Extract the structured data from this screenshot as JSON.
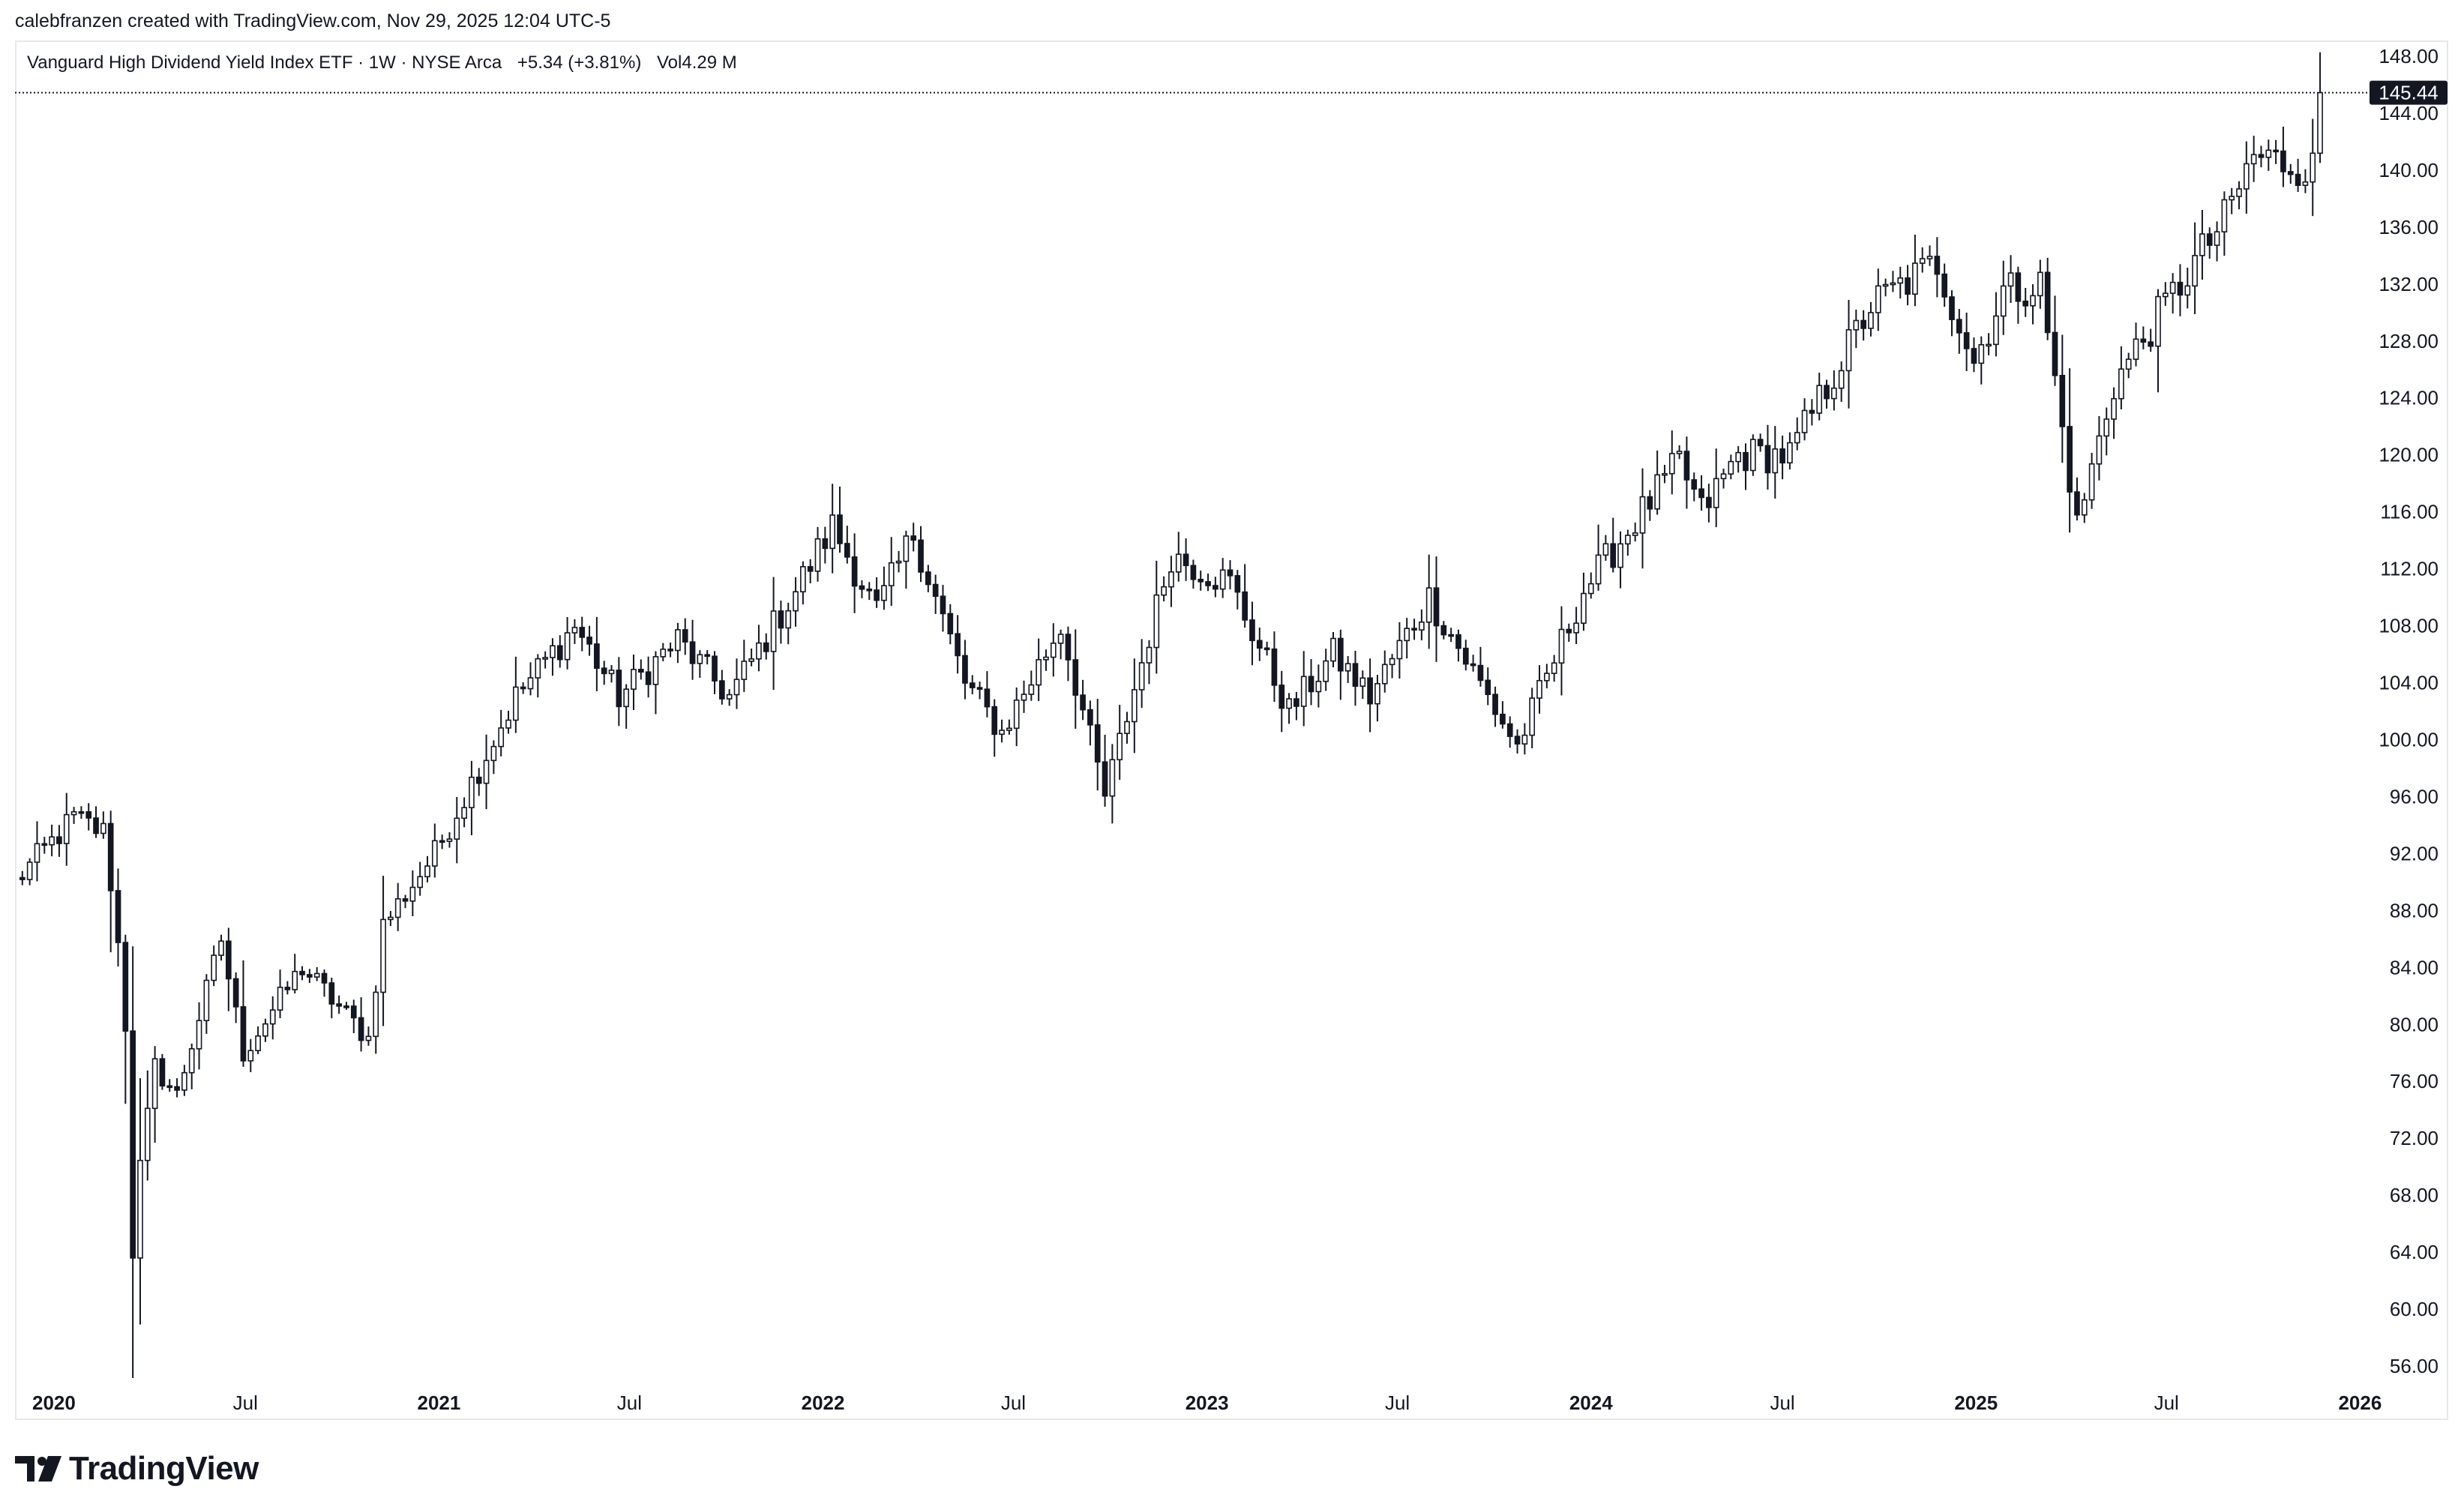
{
  "header": {
    "created_line": "calebfranzen created with TradingView.com, Nov 29, 2025 12:04 UTC-5"
  },
  "legend": {
    "symbol": "Vanguard High Dividend Yield Index ETF · 1W · NYSE Arca",
    "change": "+5.34 (+3.81%)",
    "volume_label": "Vol",
    "volume_value": "4.29 M"
  },
  "brand": {
    "name": "TradingView",
    "logo_icon": "tradingview-logo-icon"
  },
  "colors": {
    "candle": "#131722",
    "up_fill": "#ffffff",
    "down_fill": "#131722",
    "price_line": "#131722",
    "price_label_bg": "#131722"
  },
  "chart_data": {
    "type": "candlestick",
    "title": "",
    "interval": "1W",
    "ylim": [
      54,
      149
    ],
    "x_range": [
      "2019-11-25",
      "2026-01-10"
    ],
    "y_ticks": [
      56,
      60,
      64,
      68,
      72,
      76,
      80,
      84,
      88,
      92,
      96,
      100,
      104,
      108,
      112,
      116,
      120,
      124,
      128,
      132,
      136,
      140,
      144,
      148
    ],
    "x_ticks": [
      {
        "label": "2020",
        "date": "2020-01-01",
        "year": true
      },
      {
        "label": "Jul",
        "date": "2020-07-01",
        "year": false
      },
      {
        "label": "2021",
        "date": "2021-01-01",
        "year": true
      },
      {
        "label": "Jul",
        "date": "2021-07-01",
        "year": false
      },
      {
        "label": "2022",
        "date": "2022-01-01",
        "year": true
      },
      {
        "label": "Jul",
        "date": "2022-07-01",
        "year": false
      },
      {
        "label": "2023",
        "date": "2023-01-01",
        "year": true
      },
      {
        "label": "Jul",
        "date": "2023-07-01",
        "year": false
      },
      {
        "label": "2024",
        "date": "2024-01-01",
        "year": true
      },
      {
        "label": "Jul",
        "date": "2024-07-01",
        "year": false
      },
      {
        "label": "2025",
        "date": "2025-01-01",
        "year": true
      },
      {
        "label": "Jul",
        "date": "2025-07-01",
        "year": false
      },
      {
        "label": "2026",
        "date": "2026-01-01",
        "year": true
      }
    ],
    "last_price": 145.44,
    "last_price_label": "145.44",
    "price_path": [
      [
        "2019-11-25",
        90.0
      ],
      [
        "2020-01-20",
        94.5
      ],
      [
        "2020-02-17",
        93.5
      ],
      [
        "2020-02-28",
        88.0
      ],
      [
        "2020-03-09",
        80.0
      ],
      [
        "2020-03-16",
        64.0
      ],
      [
        "2020-03-23",
        70.0
      ],
      [
        "2020-04-06",
        77.0
      ],
      [
        "2020-04-27",
        75.0
      ],
      [
        "2020-06-08",
        86.0
      ],
      [
        "2020-06-29",
        78.0
      ],
      [
        "2020-08-24",
        84.0
      ],
      [
        "2020-10-26",
        79.0
      ],
      [
        "2020-11-09",
        87.0
      ],
      [
        "2020-12-28",
        92.0
      ],
      [
        "2021-03-15",
        103.0
      ],
      [
        "2021-05-10",
        108.0
      ],
      [
        "2021-06-21",
        103.0
      ],
      [
        "2021-08-16",
        107.0
      ],
      [
        "2021-10-04",
        103.0
      ],
      [
        "2021-12-06",
        110.5
      ],
      [
        "2022-01-10",
        115.0
      ],
      [
        "2022-02-21",
        109.0
      ],
      [
        "2022-03-28",
        114.5
      ],
      [
        "2022-05-16",
        104.0
      ],
      [
        "2022-06-20",
        100.5
      ],
      [
        "2022-08-15",
        108.0
      ],
      [
        "2022-09-26",
        96.0
      ],
      [
        "2022-11-28",
        113.0
      ],
      [
        "2023-01-23",
        111.0
      ],
      [
        "2023-03-20",
        102.0
      ],
      [
        "2023-05-01",
        106.0
      ],
      [
        "2023-06-05",
        103.0
      ],
      [
        "2023-07-31",
        110.0
      ],
      [
        "2023-10-23",
        99.5
      ],
      [
        "2023-12-25",
        110.5
      ],
      [
        "2024-03-25",
        119.5
      ],
      [
        "2024-04-15",
        116.0
      ],
      [
        "2024-05-20",
        120.0
      ],
      [
        "2024-07-08",
        120.0
      ],
      [
        "2024-09-23",
        130.5
      ],
      [
        "2024-11-25",
        133.5
      ],
      [
        "2024-12-30",
        126.5
      ],
      [
        "2025-01-27",
        131.5
      ],
      [
        "2025-03-03",
        132.0
      ],
      [
        "2025-04-07",
        115.0
      ],
      [
        "2025-05-12",
        125.0
      ],
      [
        "2025-06-30",
        130.5
      ],
      [
        "2025-08-25",
        136.5
      ],
      [
        "2025-09-22",
        141.0
      ],
      [
        "2025-11-17",
        140.1
      ],
      [
        "2025-11-24",
        145.44
      ]
    ]
  }
}
